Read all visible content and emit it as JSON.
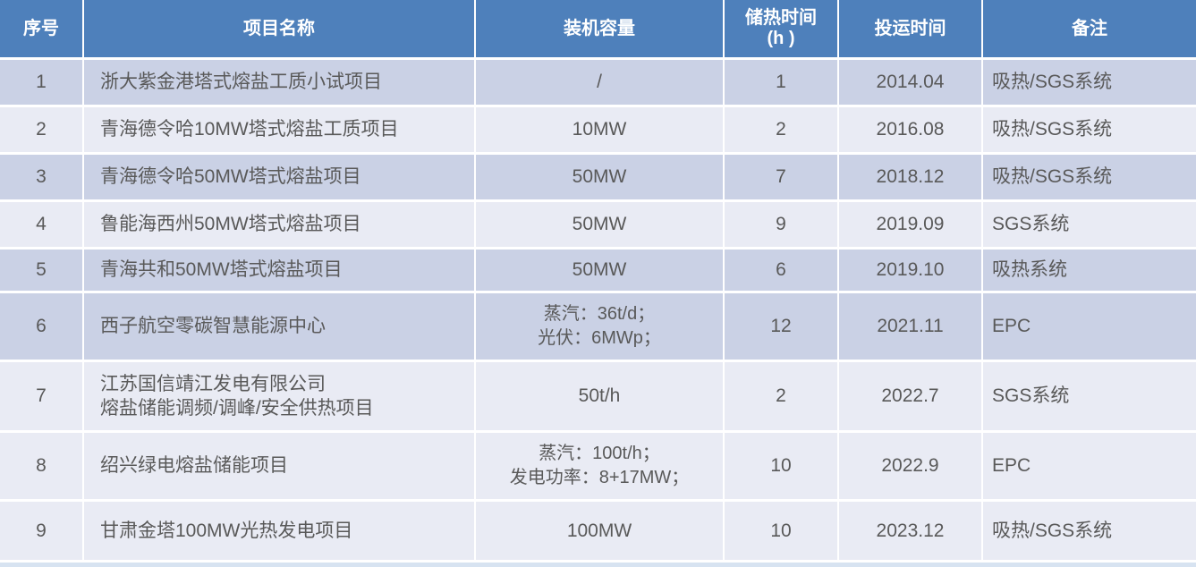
{
  "colors": {
    "header_bg": "#4e80bb",
    "band_dark": "#cad1e5",
    "band_light": "#e9ebf4",
    "header_text": "#ffffff",
    "body_text": "#595959",
    "bottom_strip": "#d7e3f1"
  },
  "table": {
    "columns": [
      {
        "key": "no",
        "label": "序号"
      },
      {
        "key": "name",
        "label": "项目名称"
      },
      {
        "key": "capacity",
        "label": "装机容量"
      },
      {
        "key": "hours",
        "label": "储热时间\n(h )"
      },
      {
        "key": "date",
        "label": "投运时间"
      },
      {
        "key": "note",
        "label": "备注"
      }
    ],
    "rows": [
      {
        "no": "1",
        "name": [
          "浙大紫金港塔式熔盐工质小试项目"
        ],
        "capacity": [
          "/"
        ],
        "hours": "1",
        "date": "2014.04",
        "note": "吸热/SGS系统",
        "shaded": true
      },
      {
        "no": "2",
        "name": [
          "青海德令哈10MW塔式熔盐工质项目"
        ],
        "capacity": [
          "10MW"
        ],
        "hours": "2",
        "date": "2016.08",
        "note": "吸热/SGS系统",
        "shaded": false
      },
      {
        "no": "3",
        "name": [
          "青海德令哈50MW塔式熔盐项目"
        ],
        "capacity": [
          "50MW"
        ],
        "hours": "7",
        "date": "2018.12",
        "note": "吸热/SGS系统",
        "shaded": true
      },
      {
        "no": "4",
        "name": [
          "鲁能海西州50MW塔式熔盐项目"
        ],
        "capacity": [
          "50MW"
        ],
        "hours": "9",
        "date": "2019.09",
        "note": "SGS系统",
        "shaded": false
      },
      {
        "no": "5",
        "name": [
          "青海共和50MW塔式熔盐项目"
        ],
        "capacity": [
          "50MW"
        ],
        "hours": "6",
        "date": "2019.10",
        "note": "吸热系统",
        "shaded": true
      },
      {
        "no": "6",
        "name": [
          "西子航空零碳智慧能源中心"
        ],
        "capacity": [
          "蒸汽：36t/d；",
          "光伏：6MWp；"
        ],
        "hours": "12",
        "date": "2021.11",
        "note": "EPC",
        "shaded": true
      },
      {
        "no": "7",
        "name": [
          "江苏国信靖江发电有限公司",
          "熔盐储能调频/调峰/安全供热项目"
        ],
        "capacity": [
          "50t/h"
        ],
        "hours": "2",
        "date": "2022.7",
        "note": "SGS系统",
        "shaded": false
      },
      {
        "no": "8",
        "name": [
          "绍兴绿电熔盐储能项目"
        ],
        "capacity": [
          "蒸汽：100t/h；",
          "发电功率：8+17MW；"
        ],
        "hours": "10",
        "date": "2022.9",
        "note": "EPC",
        "shaded": false
      },
      {
        "no": "9",
        "name": [
          "甘肃金塔100MW光热发电项目"
        ],
        "capacity": [
          "100MW"
        ],
        "hours": "10",
        "date": "2023.12",
        "note": "吸热/SGS系统",
        "shaded": false
      }
    ]
  }
}
